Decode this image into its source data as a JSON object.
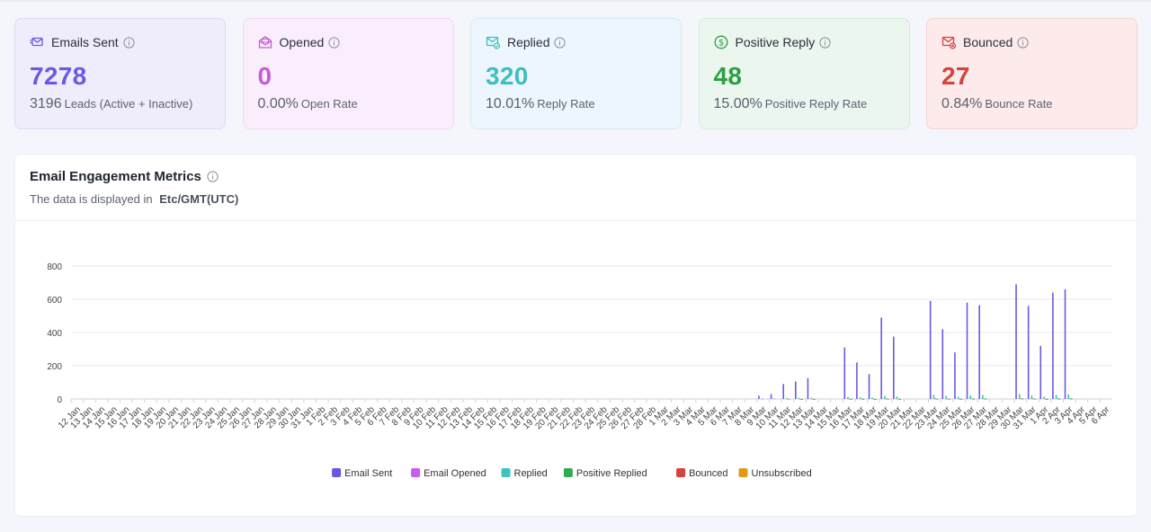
{
  "cards": [
    {
      "key": "sent",
      "title": "Emails Sent",
      "value": "7278",
      "sub_num": "3196",
      "sub_text": "Leads (Active + Inactive)",
      "icon": "email-sent-icon",
      "accent": "#6a5ae0",
      "bg": "#efedfb",
      "border": "#dcd8f5"
    },
    {
      "key": "opened",
      "title": "Opened",
      "value": "0",
      "sub_num": "0.00%",
      "sub_text": "Open Rate",
      "icon": "envelope-open-icon",
      "accent": "#c45ed8",
      "bg": "#fbeefc",
      "border": "#f1d7f5"
    },
    {
      "key": "replied",
      "title": "Replied",
      "value": "320",
      "sub_num": "10.01%",
      "sub_text": "Reply Rate",
      "icon": "mail-reply-icon",
      "accent": "#3fbfbf",
      "bg": "#ecf6fc",
      "border": "#d6ebf6"
    },
    {
      "key": "positive",
      "title": "Positive Reply",
      "value": "48",
      "sub_num": "15.00%",
      "sub_text": "Positive Reply Rate",
      "icon": "dollar-circle-icon",
      "accent": "#2e9e45",
      "bg": "#eaf6ee",
      "border": "#d3ecda"
    },
    {
      "key": "bounced",
      "title": "Bounced",
      "value": "27",
      "sub_num": "0.84%",
      "sub_text": "Bounce Rate",
      "icon": "mail-bounce-icon",
      "accent": "#d4433f",
      "bg": "#fcebea",
      "border": "#f4d3d1"
    }
  ],
  "chart": {
    "title": "Email Engagement Metrics",
    "tz_label": "The data is displayed in",
    "tz_value": "Etc/GMT(UTC)"
  },
  "chart_data": {
    "type": "bar",
    "xlabel": "",
    "ylabel": "",
    "ylim": [
      0,
      800
    ],
    "yticks": [
      0,
      200,
      400,
      600,
      800
    ],
    "grid": true,
    "legend_position": "bottom",
    "categories": [
      "12 Jan",
      "13 Jan",
      "14 Jan",
      "15 Jan",
      "16 Jan",
      "17 Jan",
      "18 Jan",
      "19 Jan",
      "20 Jan",
      "21 Jan",
      "22 Jan",
      "23 Jan",
      "24 Jan",
      "25 Jan",
      "26 Jan",
      "27 Jan",
      "28 Jan",
      "29 Jan",
      "30 Jan",
      "31 Jan",
      "1 Feb",
      "2 Feb",
      "3 Feb",
      "4 Feb",
      "5 Feb",
      "6 Feb",
      "7 Feb",
      "8 Feb",
      "9 Feb",
      "10 Feb",
      "11 Feb",
      "12 Feb",
      "13 Feb",
      "14 Feb",
      "15 Feb",
      "16 Feb",
      "17 Feb",
      "18 Feb",
      "19 Feb",
      "20 Feb",
      "21 Feb",
      "22 Feb",
      "23 Feb",
      "24 Feb",
      "25 Feb",
      "26 Feb",
      "27 Feb",
      "28 Feb",
      "1 Mar",
      "2 Mar",
      "3 Mar",
      "4 Mar",
      "5 Mar",
      "6 Mar",
      "7 Mar",
      "8 Mar",
      "9 Mar",
      "10 Mar",
      "11 Mar",
      "12 Mar",
      "13 Mar",
      "14 Mar",
      "15 Mar",
      "16 Mar",
      "17 Mar",
      "18 Mar",
      "19 Mar",
      "20 Mar",
      "21 Mar",
      "22 Mar",
      "23 Mar",
      "24 Mar",
      "25 Mar",
      "26 Mar",
      "27 Mar",
      "28 Mar",
      "29 Mar",
      "30 Mar",
      "31 Mar",
      "1 Apr",
      "2 Apr",
      "3 Apr",
      "4 Apr",
      "5 Apr",
      "6 Apr"
    ],
    "series": [
      {
        "name": "Email Sent",
        "color": "#6b55e0",
        "values": [
          0,
          0,
          0,
          0,
          0,
          0,
          0,
          0,
          0,
          0,
          0,
          0,
          0,
          0,
          0,
          0,
          0,
          0,
          0,
          0,
          0,
          0,
          0,
          0,
          0,
          0,
          0,
          0,
          0,
          0,
          0,
          0,
          0,
          0,
          0,
          0,
          0,
          0,
          0,
          0,
          0,
          0,
          0,
          0,
          0,
          0,
          0,
          0,
          0,
          0,
          0,
          0,
          0,
          0,
          0,
          0,
          20,
          30,
          90,
          105,
          125,
          0,
          0,
          310,
          220,
          150,
          490,
          375,
          0,
          0,
          590,
          420,
          280,
          580,
          565,
          0,
          0,
          690,
          560,
          320,
          640,
          660,
          0,
          0,
          0
        ]
      },
      {
        "name": "Email Opened",
        "color": "#c65cf0",
        "values": [
          0,
          0,
          0,
          0,
          0,
          0,
          0,
          0,
          0,
          0,
          0,
          0,
          0,
          0,
          0,
          0,
          0,
          0,
          0,
          0,
          0,
          0,
          0,
          0,
          0,
          0,
          0,
          0,
          0,
          0,
          0,
          0,
          0,
          0,
          0,
          0,
          0,
          0,
          0,
          0,
          0,
          0,
          0,
          0,
          0,
          0,
          0,
          0,
          0,
          0,
          0,
          0,
          0,
          0,
          0,
          0,
          0,
          0,
          0,
          0,
          0,
          0,
          0,
          0,
          0,
          0,
          0,
          0,
          0,
          0,
          0,
          0,
          0,
          0,
          0,
          0,
          0,
          0,
          0,
          0,
          0,
          0,
          0,
          0,
          0
        ]
      },
      {
        "name": "Replied",
        "color": "#3fc2c2",
        "values": [
          0,
          0,
          0,
          0,
          0,
          0,
          0,
          0,
          0,
          0,
          0,
          0,
          0,
          0,
          0,
          0,
          0,
          0,
          0,
          0,
          0,
          0,
          0,
          0,
          0,
          0,
          0,
          0,
          0,
          0,
          0,
          0,
          0,
          0,
          0,
          0,
          0,
          0,
          0,
          0,
          0,
          0,
          0,
          0,
          0,
          0,
          0,
          0,
          0,
          0,
          0,
          0,
          0,
          0,
          0,
          0,
          2,
          3,
          6,
          7,
          8,
          0,
          0,
          12,
          10,
          8,
          18,
          15,
          0,
          0,
          25,
          20,
          14,
          22,
          24,
          0,
          0,
          30,
          22,
          14,
          25,
          28,
          0,
          0,
          0
        ]
      },
      {
        "name": "Positive Replied",
        "color": "#2fae4e",
        "values": [
          0,
          0,
          0,
          0,
          0,
          0,
          0,
          0,
          0,
          0,
          0,
          0,
          0,
          0,
          0,
          0,
          0,
          0,
          0,
          0,
          0,
          0,
          0,
          0,
          0,
          0,
          0,
          0,
          0,
          0,
          0,
          0,
          0,
          0,
          0,
          0,
          0,
          0,
          0,
          0,
          0,
          0,
          0,
          0,
          0,
          0,
          0,
          0,
          0,
          0,
          0,
          0,
          0,
          0,
          0,
          0,
          0,
          0,
          1,
          1,
          1,
          0,
          0,
          2,
          2,
          1,
          3,
          2,
          0,
          0,
          4,
          3,
          2,
          4,
          4,
          0,
          0,
          5,
          4,
          2,
          4,
          5,
          0,
          0,
          0
        ]
      },
      {
        "name": "Bounced",
        "color": "#d9413d",
        "values": [
          0,
          0,
          0,
          0,
          0,
          0,
          0,
          0,
          0,
          0,
          0,
          0,
          0,
          0,
          0,
          0,
          0,
          0,
          0,
          0,
          0,
          0,
          0,
          0,
          0,
          0,
          0,
          0,
          0,
          0,
          0,
          0,
          0,
          0,
          0,
          0,
          0,
          0,
          0,
          0,
          0,
          0,
          0,
          0,
          0,
          0,
          0,
          0,
          0,
          0,
          0,
          0,
          0,
          0,
          0,
          0,
          0,
          0,
          0,
          1,
          1,
          0,
          0,
          1,
          1,
          1,
          2,
          1,
          0,
          0,
          2,
          2,
          1,
          2,
          2,
          0,
          0,
          3,
          2,
          1,
          2,
          3,
          0,
          0,
          0
        ]
      },
      {
        "name": "Unsubscribed",
        "color": "#e09a1a",
        "values": [
          0,
          0,
          0,
          0,
          0,
          0,
          0,
          0,
          0,
          0,
          0,
          0,
          0,
          0,
          0,
          0,
          0,
          0,
          0,
          0,
          0,
          0,
          0,
          0,
          0,
          0,
          0,
          0,
          0,
          0,
          0,
          0,
          0,
          0,
          0,
          0,
          0,
          0,
          0,
          0,
          0,
          0,
          0,
          0,
          0,
          0,
          0,
          0,
          0,
          0,
          0,
          0,
          0,
          0,
          0,
          0,
          0,
          0,
          0,
          0,
          0,
          0,
          0,
          0,
          0,
          0,
          0,
          0,
          0,
          0,
          0,
          0,
          0,
          0,
          0,
          0,
          0,
          0,
          0,
          0,
          0,
          0,
          0,
          0,
          0
        ]
      }
    ]
  }
}
